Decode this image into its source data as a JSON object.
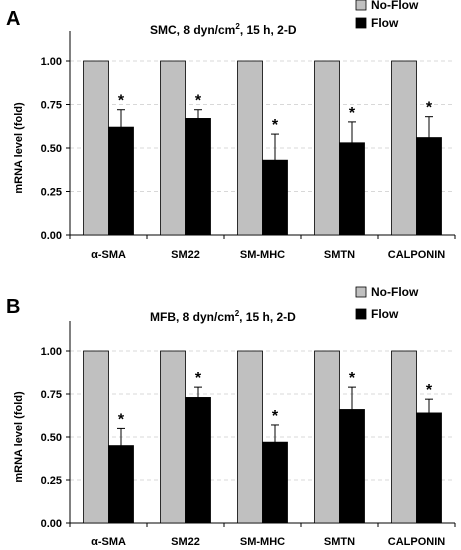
{
  "colors": {
    "no_flow": "#c0c0c0",
    "flow": "#000000",
    "grid": "#d8d8d8"
  },
  "chart_data": [
    {
      "type": "bar",
      "panel_label": "A",
      "title": "SMC, 8 dyn/cm², 15 h, 2-D",
      "title_parts": {
        "pre": "SMC, 8 dyn/cm",
        "sup": "2",
        "post": ", 15 h, 2-D"
      },
      "xlabel": "",
      "ylabel": "mRNA level (fold)",
      "ylim": [
        0,
        1.0
      ],
      "yticks": [
        "0.00",
        "0.25",
        "0.50",
        "0.75",
        "1.00"
      ],
      "grid": true,
      "legend_position": "top-right",
      "categories": [
        "α-SMA",
        "SM22",
        "SM-MHC",
        "SMTN",
        "CALPONIN"
      ],
      "series": [
        {
          "name": "No-Flow",
          "values": [
            1.0,
            1.0,
            1.0,
            1.0,
            1.0
          ]
        },
        {
          "name": "Flow",
          "values": [
            0.62,
            0.67,
            0.43,
            0.53,
            0.56
          ],
          "error": [
            0.1,
            0.05,
            0.15,
            0.12,
            0.12
          ],
          "significance": [
            "*",
            "*",
            "*",
            "*",
            "*"
          ]
        }
      ]
    },
    {
      "type": "bar",
      "panel_label": "B",
      "title": "MFB, 8 dyn/cm², 15 h, 2-D",
      "title_parts": {
        "pre": "MFB, 8 dyn/cm",
        "sup": "2",
        "post": ", 15 h, 2-D"
      },
      "xlabel": "",
      "ylabel": "mRNA level (fold)",
      "ylim": [
        0,
        1.0
      ],
      "yticks": [
        "0.00",
        "0.25",
        "0.50",
        "0.75",
        "1.00"
      ],
      "grid": true,
      "legend_position": "top-right",
      "categories": [
        "α-SMA",
        "SM22",
        "SM-MHC",
        "SMTN",
        "CALPONIN"
      ],
      "series": [
        {
          "name": "No-Flow",
          "values": [
            1.0,
            1.0,
            1.0,
            1.0,
            1.0
          ]
        },
        {
          "name": "Flow",
          "values": [
            0.45,
            0.73,
            0.47,
            0.66,
            0.64
          ],
          "error": [
            0.1,
            0.06,
            0.1,
            0.13,
            0.08
          ],
          "significance": [
            "*",
            "*",
            "*",
            "*",
            "*"
          ]
        }
      ]
    }
  ]
}
